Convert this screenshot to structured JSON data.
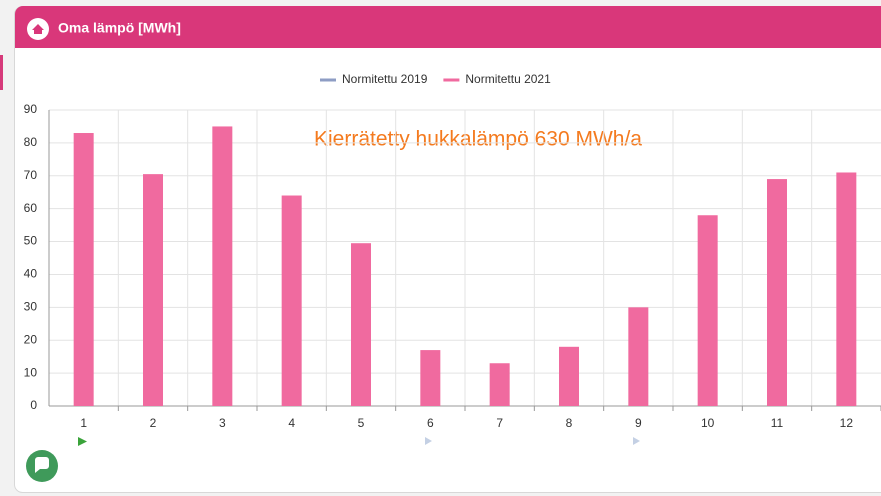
{
  "header": {
    "title": "Oma lämpö [MWh]"
  },
  "chart_data": {
    "type": "bar",
    "annotation": "Kierrätetty hukkalämpö 630 MWh/a",
    "categories": [
      "1",
      "2",
      "3",
      "4",
      "5",
      "6",
      "7",
      "8",
      "9",
      "10",
      "11",
      "12"
    ],
    "series": [
      {
        "name": "Normitettu 2019",
        "color": "#8e9dc4",
        "values": [
          null,
          null,
          null,
          null,
          null,
          null,
          null,
          null,
          null,
          null,
          null,
          null
        ]
      },
      {
        "name": "Normitettu 2021",
        "color": "#f06a9f",
        "values": [
          83,
          70.5,
          85,
          64,
          49.5,
          17,
          13,
          18,
          30,
          58,
          69,
          71
        ]
      }
    ],
    "ylim": [
      0,
      90
    ],
    "yticks": [
      0,
      10,
      20,
      30,
      40,
      50,
      60,
      70,
      80,
      90
    ],
    "grid": true,
    "legend": "top"
  }
}
